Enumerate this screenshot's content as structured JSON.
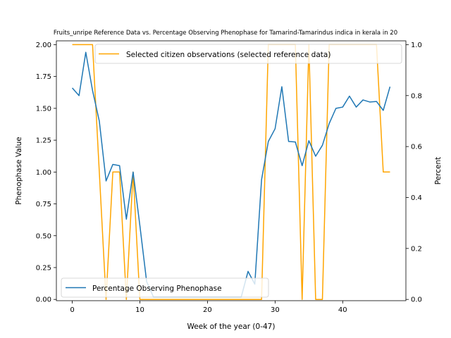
{
  "chart_data": {
    "type": "line",
    "title": "Fruits_unripe Reference Data vs. Percentage Observing Phenophase for Tamarind-Tamarindus indica in kerala in 20",
    "xlabel": "Week of the year (0-47)",
    "ylabel_left": "Phenophase Value",
    "ylabel_right": "Percent",
    "xlim": [
      -2.35,
      49.35
    ],
    "ylim_left": [
      -0.01,
      2.03
    ],
    "ylim_right": [
      -0.005,
      1.015
    ],
    "x_ticks": [
      0,
      10,
      20,
      30,
      40
    ],
    "y_ticks_left": [
      0.0,
      0.25,
      0.5,
      0.75,
      1.0,
      1.25,
      1.5,
      1.75,
      2.0
    ],
    "y_ticks_left_labels": [
      "0.00",
      "0.25",
      "0.50",
      "0.75",
      "1.00",
      "1.25",
      "1.50",
      "1.75",
      "2.00"
    ],
    "y_ticks_right": [
      0.0,
      0.2,
      0.4,
      0.6,
      0.8,
      1.0
    ],
    "y_ticks_right_labels": [
      "0.0",
      "0.2",
      "0.4",
      "0.6",
      "0.8",
      "1.0"
    ],
    "grid": false,
    "series": [
      {
        "name": "Selected citizen observations (selected reference data)",
        "axis": "left",
        "color": "#ffa500",
        "legend_position": "top-right",
        "x": [
          0,
          1,
          2,
          3,
          4,
          5,
          6,
          7,
          8,
          9,
          10,
          11,
          12,
          13,
          14,
          15,
          16,
          17,
          18,
          19,
          20,
          21,
          22,
          23,
          24,
          25,
          26,
          27,
          28,
          29,
          30,
          31,
          32,
          33,
          34,
          35,
          36,
          37,
          38,
          39,
          40,
          41,
          42,
          43,
          44,
          45,
          46,
          47
        ],
        "values": [
          2,
          2,
          2,
          2,
          1,
          0,
          1,
          1,
          0,
          1,
          0,
          0,
          0,
          0,
          0,
          0,
          0,
          0,
          0,
          0,
          0,
          0,
          0,
          0,
          0,
          0,
          0,
          0,
          0,
          2,
          2,
          2,
          2,
          2,
          0,
          2,
          0,
          0,
          2,
          2,
          2,
          2,
          2,
          2,
          2,
          2,
          1,
          1
        ]
      },
      {
        "name": "Percentage Observing Phenophase",
        "axis": "right",
        "color": "#1f77b4",
        "legend_position": "bottom-left",
        "x": [
          0,
          1,
          2,
          3,
          4,
          5,
          6,
          7,
          8,
          9,
          10,
          11,
          12,
          13,
          14,
          15,
          16,
          17,
          18,
          19,
          20,
          21,
          22,
          23,
          24,
          25,
          26,
          27,
          28,
          29,
          30,
          31,
          32,
          33,
          34,
          35,
          36,
          37,
          38,
          39,
          40,
          41,
          42,
          43,
          44,
          45,
          46,
          47
        ],
        "values": [
          0.83,
          0.8,
          0.97,
          0.82,
          0.7,
          0.465,
          0.53,
          0.525,
          0.315,
          0.5,
          0.29,
          0.07,
          0.01,
          0.01,
          0.01,
          0.01,
          0.01,
          0.01,
          0.01,
          0.01,
          0.01,
          0.01,
          0.01,
          0.01,
          0.01,
          0.01,
          0.11,
          0.06,
          0.47,
          0.62,
          0.67,
          0.835,
          0.62,
          0.618,
          0.525,
          0.623,
          0.562,
          0.605,
          0.69,
          0.75,
          0.755,
          0.798,
          0.755,
          0.783,
          0.775,
          0.777,
          0.742,
          0.835
        ]
      }
    ]
  }
}
